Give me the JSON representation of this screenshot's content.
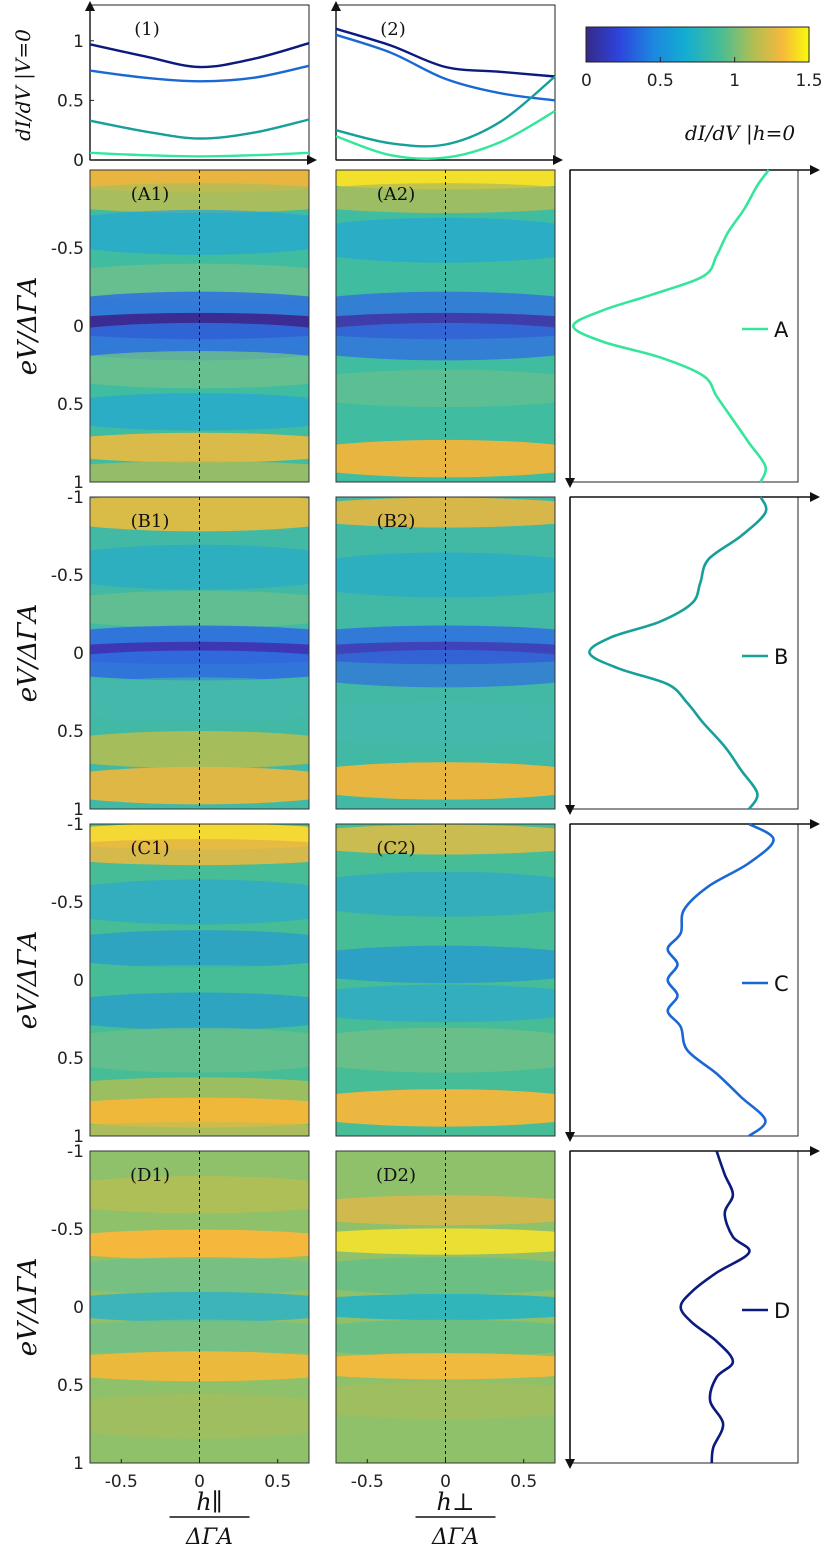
{
  "chart_data": {
    "type": "heatmap",
    "colorbar": {
      "ticks": [
        "0",
        "0.5",
        "1",
        "1.5"
      ],
      "range": [
        0,
        1.5
      ],
      "colormap": "parula"
    },
    "top_panels": [
      {
        "label": "(1)",
        "ylabel": "dI/dV |V=0",
        "yticks": [
          "0",
          "0.5",
          "1"
        ],
        "xrange": [
          -0.7,
          0.7
        ],
        "yrange": [
          0,
          1.3
        ],
        "series": [
          {
            "color": "#0a1a7e",
            "x": [
              -0.7,
              -0.35,
              0,
              0.35,
              0.7
            ],
            "y": [
              0.97,
              0.87,
              0.78,
              0.85,
              0.98
            ]
          },
          {
            "color": "#1a68d4",
            "x": [
              -0.7,
              -0.35,
              0,
              0.35,
              0.7
            ],
            "y": [
              0.75,
              0.69,
              0.66,
              0.69,
              0.79
            ]
          },
          {
            "color": "#179f9a",
            "x": [
              -0.7,
              -0.35,
              0,
              0.35,
              0.7
            ],
            "y": [
              0.33,
              0.24,
              0.18,
              0.23,
              0.34
            ]
          },
          {
            "color": "#33e69a",
            "x": [
              -0.7,
              -0.35,
              0,
              0.35,
              0.7
            ],
            "y": [
              0.06,
              0.04,
              0.03,
              0.04,
              0.06
            ]
          }
        ]
      },
      {
        "label": "(2)",
        "yticks": [],
        "xrange": [
          -0.7,
          0.7
        ],
        "yrange": [
          0,
          1.3
        ],
        "series": [
          {
            "color": "#0a1a7e",
            "x": [
              -0.7,
              -0.35,
              0,
              0.35,
              0.7
            ],
            "y": [
              1.1,
              0.96,
              0.78,
              0.74,
              0.7
            ]
          },
          {
            "color": "#1a68d4",
            "x": [
              -0.7,
              -0.35,
              0,
              0.35,
              0.7
            ],
            "y": [
              1.05,
              0.9,
              0.68,
              0.56,
              0.5
            ]
          },
          {
            "color": "#179f9a",
            "x": [
              -0.7,
              -0.35,
              0,
              0.35,
              0.7
            ],
            "y": [
              0.25,
              0.14,
              0.13,
              0.32,
              0.7
            ]
          },
          {
            "color": "#33e69a",
            "x": [
              -0.7,
              -0.35,
              0,
              0.35,
              0.7
            ],
            "y": [
              0.2,
              0.04,
              0.02,
              0.15,
              0.41
            ]
          }
        ]
      }
    ],
    "rows": [
      {
        "key": "A",
        "legend": "A",
        "color": "#33e69a",
        "map1_label": "(A1)",
        "map2_label": "(A2)",
        "spectrum_v": [
          -1.0,
          -0.9,
          -0.75,
          -0.6,
          -0.45,
          -0.32,
          -0.2,
          -0.1,
          0,
          0.1,
          0.2,
          0.32,
          0.45,
          0.6,
          0.75,
          0.9,
          1.0
        ],
        "spectrum_g": [
          1.22,
          1.15,
          1.07,
          0.97,
          0.9,
          0.82,
          0.5,
          0.2,
          0.02,
          0.2,
          0.55,
          0.82,
          0.9,
          1.0,
          1.1,
          1.2,
          1.17
        ]
      },
      {
        "key": "B",
        "legend": "B",
        "color": "#179f9a",
        "map1_label": "(B1)",
        "map2_label": "(B2)",
        "spectrum_v": [
          -1.0,
          -0.9,
          -0.75,
          -0.6,
          -0.45,
          -0.32,
          -0.2,
          -0.1,
          0,
          0.1,
          0.2,
          0.32,
          0.45,
          0.6,
          0.75,
          0.9,
          1.0
        ],
        "spectrum_g": [
          1.17,
          1.2,
          1.05,
          0.85,
          0.8,
          0.75,
          0.55,
          0.25,
          0.12,
          0.3,
          0.6,
          0.72,
          0.82,
          0.95,
          1.05,
          1.15,
          1.1
        ]
      },
      {
        "key": "C",
        "legend": "C",
        "color": "#1a68d4",
        "map1_label": "(C1)",
        "map2_label": "(C2)",
        "spectrum_v": [
          -1.0,
          -0.9,
          -0.75,
          -0.6,
          -0.45,
          -0.3,
          -0.2,
          -0.1,
          0,
          0.1,
          0.2,
          0.3,
          0.45,
          0.6,
          0.75,
          0.9,
          1.0
        ],
        "spectrum_g": [
          1.1,
          1.25,
          1.1,
          0.85,
          0.7,
          0.68,
          0.6,
          0.66,
          0.6,
          0.66,
          0.6,
          0.68,
          0.72,
          0.9,
          1.05,
          1.2,
          1.1
        ]
      },
      {
        "key": "D",
        "legend": "D",
        "color": "#0a1a7e",
        "map1_label": "(D1)",
        "map2_label": "(D2)",
        "spectrum_v": [
          -1.0,
          -0.85,
          -0.72,
          -0.6,
          -0.45,
          -0.35,
          -0.22,
          -0.1,
          0,
          0.1,
          0.22,
          0.35,
          0.45,
          0.6,
          0.75,
          0.9,
          1.0
        ],
        "spectrum_g": [
          0.9,
          0.95,
          1.0,
          0.95,
          1.0,
          1.1,
          0.9,
          0.75,
          0.68,
          0.75,
          0.9,
          1.0,
          0.9,
          0.86,
          0.94,
          0.88,
          0.87
        ]
      }
    ],
    "v_ticks": [
      "-1",
      "-0.5",
      "0",
      "0.5",
      "1"
    ],
    "v_range": [
      -1,
      1
    ],
    "h_ticks": [
      "-0.5",
      "0",
      "0.5"
    ],
    "h_range": [
      -0.7,
      0.7
    ],
    "ylabel": "eV/ΔΓA",
    "xlabel1": "h∥ / ΔΓA",
    "xlabel2": "h⊥ / ΔΓA",
    "right_xlabel": "dI/dV |h=0"
  }
}
